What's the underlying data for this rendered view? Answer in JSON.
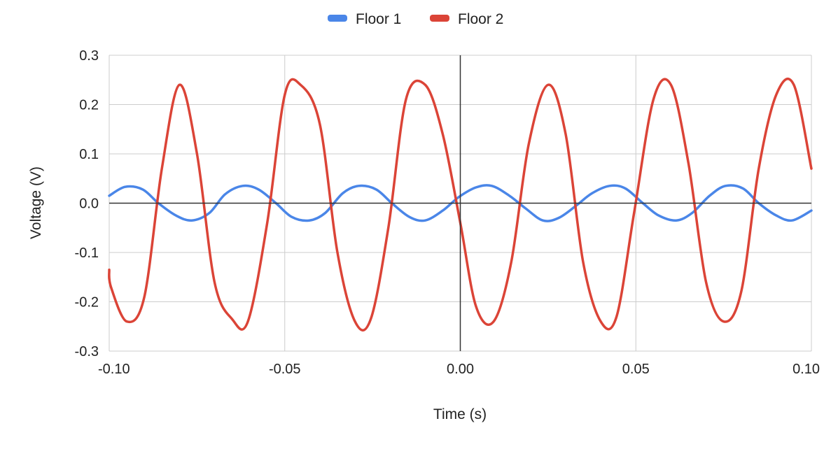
{
  "chart_data": {
    "type": "line",
    "title": "",
    "xlabel": "Time (s)",
    "ylabel": "Voltage (V)",
    "xlim": [
      -0.1,
      0.1
    ],
    "ylim": [
      -0.3,
      0.3
    ],
    "xticks": [
      -0.1,
      -0.05,
      0.0,
      0.05,
      0.1
    ],
    "xtick_labels": [
      "-0.10",
      "-0.05",
      "0.00",
      "0.05",
      "0.10"
    ],
    "yticks": [
      -0.3,
      -0.2,
      -0.1,
      0.0,
      0.1,
      0.2,
      0.3
    ],
    "ytick_labels": [
      "-0.3",
      "-0.2",
      "-0.1",
      "0.0",
      "0.1",
      "0.2",
      "0.3"
    ],
    "grid": true,
    "legend_position": "top-center",
    "series": [
      {
        "name": "Floor 1",
        "color": "#4a86e8",
        "x": [
          -0.1,
          -0.0955,
          -0.0905,
          -0.086,
          -0.081,
          -0.0765,
          -0.0715,
          -0.067,
          -0.062,
          -0.0575,
          -0.0525,
          -0.048,
          -0.043,
          -0.0385,
          -0.0335,
          -0.029,
          -0.024,
          -0.0195,
          -0.0145,
          -0.01,
          -0.005,
          -0.0005,
          0.0045,
          0.009,
          0.014,
          0.0185,
          0.0235,
          0.028,
          0.033,
          0.0375,
          0.0425,
          0.047,
          0.052,
          0.0565,
          0.0615,
          0.066,
          0.071,
          0.0755,
          0.0805,
          0.085,
          0.09,
          0.0945,
          0.1
        ],
        "y": [
          0.015,
          0.033,
          0.028,
          0.0,
          -0.025,
          -0.035,
          -0.02,
          0.018,
          0.035,
          0.028,
          0.0,
          -0.028,
          -0.035,
          -0.02,
          0.02,
          0.035,
          0.028,
          0.0,
          -0.028,
          -0.035,
          -0.015,
          0.012,
          0.032,
          0.035,
          0.015,
          -0.01,
          -0.035,
          -0.03,
          -0.005,
          0.02,
          0.035,
          0.03,
          0.0,
          -0.025,
          -0.035,
          -0.02,
          0.015,
          0.035,
          0.03,
          0.0,
          -0.025,
          -0.035,
          -0.015
        ]
      },
      {
        "name": "Floor 2",
        "color": "#db4437",
        "x": [
          -0.1,
          -0.0995,
          -0.095,
          -0.09,
          -0.085,
          -0.08,
          -0.075,
          -0.07,
          -0.065,
          -0.0605,
          -0.055,
          -0.05,
          -0.0455,
          -0.04,
          -0.035,
          -0.03,
          -0.0255,
          -0.0205,
          -0.0155,
          -0.01,
          -0.005,
          0.0,
          0.0045,
          0.0095,
          0.0145,
          0.0195,
          0.025,
          0.03,
          0.035,
          0.04,
          0.0445,
          0.0495,
          0.055,
          0.06,
          0.065,
          0.07,
          0.075,
          0.08,
          0.085,
          0.09,
          0.095,
          0.1
        ],
        "y": [
          -0.135,
          -0.17,
          -0.24,
          -0.19,
          0.07,
          0.24,
          0.1,
          -0.16,
          -0.235,
          -0.24,
          -0.04,
          0.22,
          0.24,
          0.16,
          -0.1,
          -0.24,
          -0.235,
          -0.05,
          0.21,
          0.24,
          0.14,
          -0.04,
          -0.21,
          -0.24,
          -0.12,
          0.12,
          0.24,
          0.14,
          -0.12,
          -0.24,
          -0.23,
          -0.02,
          0.21,
          0.24,
          0.08,
          -0.16,
          -0.24,
          -0.18,
          0.07,
          0.22,
          0.24,
          0.07
        ]
      }
    ]
  }
}
